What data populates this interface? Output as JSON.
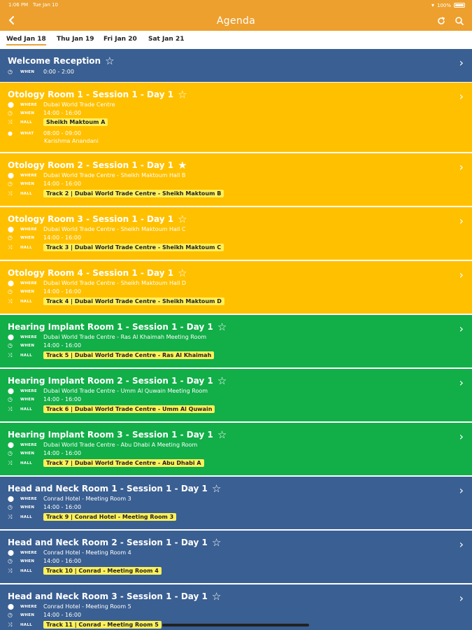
{
  "status_bar": {
    "time": "1:06 PM",
    "date": "Tue Jan 10",
    "battery": "100%"
  },
  "header": {
    "title": "Agenda",
    "back_icon": "chevron-left-icon",
    "refresh_icon": "refresh-icon",
    "search_icon": "search-icon",
    "color": "#EDA02E"
  },
  "tabs": [
    {
      "label": "Wed Jan 18",
      "active": true
    },
    {
      "label": "Thu Jan 19"
    },
    {
      "label": "Fri Jan 20"
    },
    {
      "label": "Sat Jan 21"
    }
  ],
  "labels": {
    "where": "WHERE",
    "when": "WHEN",
    "hall": "HALL",
    "what": "WHAT"
  },
  "sessions": [
    {
      "title": "Welcome Reception",
      "color": "#3A5F92",
      "starred": false,
      "when": "0:00 - 2:00"
    },
    {
      "title": "Otology Room 1 - Session 1 - Day 1",
      "color": "#FFC000",
      "starred": false,
      "where": "Dubai World Trade Centre",
      "when": "14:00 - 16:00",
      "hall": "Sheikh Maktoum A",
      "what": "08:00 - 09:00",
      "what_detail": "Karishma Anandani"
    },
    {
      "title": "Otology Room 2 - Session 1 - Day 1",
      "color": "#FFC000",
      "starred": true,
      "where": "Dubai World Trade Centre - Sheikh Maktoum Hall B",
      "when": "14:00 - 16:00",
      "hall": "Track 2 | Dubai World Trade Centre - Sheikh Maktoum B"
    },
    {
      "title": "Otology Room 3 - Session 1 - Day 1",
      "color": "#FFC000",
      "starred": false,
      "where": "Dubai World Trade Centre - Sheikh Maktoum Hall C",
      "when": "14:00 - 16:00",
      "hall": "Track 3 | Dubai World Trade Centre - Sheikh Maktoum C"
    },
    {
      "title": "Otology Room 4 - Session 1 - Day 1",
      "color": "#FFC000",
      "starred": false,
      "where": "Dubai World Trade Centre - Sheikh Maktoum Hall D",
      "when": "14:00 - 16:00",
      "hall": "Track 4 | Dubai World Trade Centre - Sheikh Maktoum D"
    },
    {
      "title": "Hearing Implant Room 1 - Session 1 - Day 1",
      "color": "#12AE48",
      "starred": false,
      "where": "Dubai World Trade Centre - Ras Al Khaimah Meeting Room",
      "when": "14:00 - 16:00",
      "hall": "Track 5 | Dubai World Trade Centre - Ras Al Khaimah"
    },
    {
      "title": "Hearing Implant Room 2 - Session 1 - Day 1",
      "color": "#12AE48",
      "starred": false,
      "where": "Dubai World Trade Centre - Umm Al Quwain Meeting Room",
      "when": "14:00 - 16:00",
      "hall": "Track 6 | Dubai World Trade Centre - Umm Al Quwain"
    },
    {
      "title": "Hearing Implant Room 3 - Session 1 - Day 1",
      "color": "#12AE48",
      "starred": false,
      "where": "Dubai World Trade Centre - Abu Dhabi A Meeting Room",
      "when": "14:00 - 16:00",
      "hall": "Track 7 | Dubai World Trade Centre - Abu Dhabi A"
    },
    {
      "title": "Head and Neck Room 1 - Session 1 - Day 1",
      "color": "#3A5F92",
      "starred": false,
      "where": "Conrad Hotel - Meeting Room 3",
      "when": "14:00 - 16:00",
      "hall": "Track 9 | Conrad Hotel - Meeting Room 3"
    },
    {
      "title": "Head and Neck Room 2 - Session 1 - Day 1",
      "color": "#3A5F92",
      "starred": false,
      "where": "Conrad Hotel - Meeting Room 4",
      "when": "14:00 - 16:00",
      "hall": "Track 10 | Conrad - Meeting Room 4"
    },
    {
      "title": "Head and Neck Room 3 - Session 1 - Day 1",
      "color": "#3A5F92",
      "starred": false,
      "where": "Conrad Hotel - Meeting Room 5",
      "when": "14:00 - 16:00",
      "hall": "Track 11 | Conrad - Meeting Room 5"
    }
  ]
}
